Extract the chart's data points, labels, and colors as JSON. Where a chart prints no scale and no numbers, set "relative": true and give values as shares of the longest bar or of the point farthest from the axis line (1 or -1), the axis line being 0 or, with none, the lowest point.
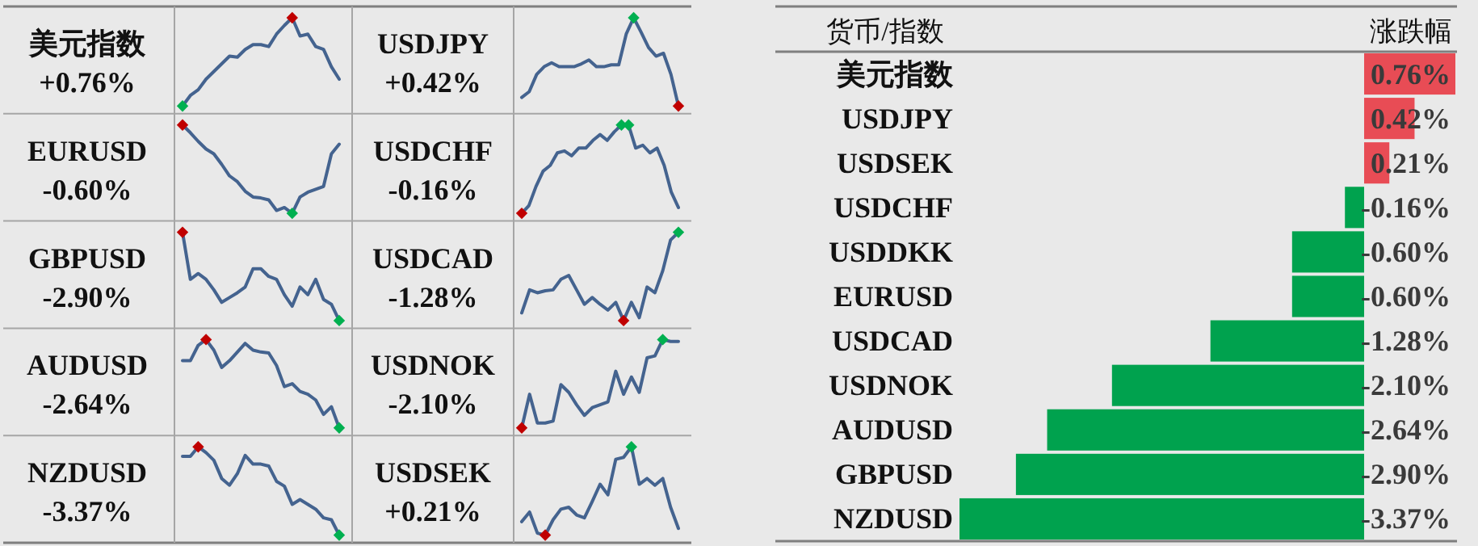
{
  "chart_data": [
    {
      "type": "line",
      "title": "美元指数",
      "subtitle": "+0.76%",
      "relative": true,
      "categories": [
        null,
        null,
        null,
        null,
        null,
        null,
        null,
        null,
        null,
        null,
        null,
        null,
        null,
        null,
        null,
        null,
        null,
        null,
        null,
        null,
        null
      ],
      "series": [
        {
          "color": "#44638f",
          "values": [
            0.08,
            0.19,
            0.25,
            0.36,
            0.44,
            0.52,
            0.6,
            0.59,
            0.67,
            0.72,
            0.72,
            0.7,
            0.83,
            0.92,
            1,
            0.81,
            0.83,
            0.7,
            0.67,
            0.49,
            0.36
          ],
          "colors": [
            "#00b050",
            null,
            null,
            null,
            null,
            null,
            null,
            null,
            null,
            null,
            null,
            null,
            null,
            null,
            "#c00000",
            null,
            null,
            null,
            null,
            null,
            null
          ]
        }
      ]
    },
    {
      "type": "line",
      "title": "USDJPY",
      "subtitle": "+0.42%",
      "relative": true,
      "categories": [
        null,
        null,
        null,
        null,
        null,
        null,
        null,
        null,
        null,
        null,
        null,
        null,
        null,
        null,
        null,
        null,
        null,
        null,
        null,
        null,
        null,
        null
      ],
      "series": [
        {
          "color": "#44638f",
          "values": [
            0.17,
            0.23,
            0.41,
            0.49,
            0.53,
            0.49,
            0.49,
            0.49,
            0.52,
            0.56,
            0.49,
            0.49,
            0.51,
            0.51,
            0.83,
            1,
            0.85,
            0.69,
            0.6,
            0.63,
            0.41,
            0.08
          ],
          "colors": [
            null,
            null,
            null,
            null,
            null,
            null,
            null,
            null,
            null,
            null,
            null,
            null,
            null,
            null,
            null,
            "#00b050",
            null,
            null,
            null,
            null,
            null,
            "#c00000"
          ]
        }
      ]
    },
    {
      "type": "line",
      "title": "EURUSD",
      "subtitle": "-0.60%",
      "relative": true,
      "categories": [
        null,
        null,
        null,
        null,
        null,
        null,
        null,
        null,
        null,
        null,
        null,
        null,
        null,
        null,
        null,
        null,
        null,
        null,
        null,
        null,
        null
      ],
      "series": [
        {
          "color": "#44638f",
          "values": [
            1,
            0.92,
            0.83,
            0.75,
            0.7,
            0.59,
            0.47,
            0.41,
            0.31,
            0.25,
            0.24,
            0.22,
            0.11,
            0.14,
            0.08,
            0.25,
            0.3,
            0.33,
            0.36,
            0.7,
            0.8
          ],
          "colors": [
            "#c00000",
            null,
            null,
            null,
            null,
            null,
            null,
            null,
            null,
            null,
            null,
            null,
            null,
            null,
            "#00b050",
            null,
            null,
            null,
            null,
            null,
            null
          ]
        }
      ]
    },
    {
      "type": "line",
      "title": "USDCHF",
      "subtitle": "-0.16%",
      "relative": true,
      "categories": [
        null,
        null,
        null,
        null,
        null,
        null,
        null,
        null,
        null,
        null,
        null,
        null,
        null,
        null,
        null,
        null,
        null,
        null,
        null,
        null,
        null,
        null,
        null
      ],
      "series": [
        {
          "color": "#44638f",
          "values": [
            0.08,
            0.16,
            0.36,
            0.52,
            0.58,
            0.71,
            0.73,
            0.68,
            0.76,
            0.76,
            0.84,
            0.9,
            0.84,
            0.93,
            1,
            1,
            0.76,
            0.79,
            0.71,
            0.76,
            0.58,
            0.3,
            0.14
          ],
          "colors": [
            "#c00000",
            null,
            null,
            null,
            null,
            null,
            null,
            null,
            null,
            null,
            null,
            null,
            null,
            null,
            "#00b050",
            "#00b050",
            null,
            null,
            null,
            null,
            null,
            null,
            null
          ]
        }
      ]
    },
    {
      "type": "line",
      "title": "GBPUSD",
      "subtitle": "-2.90%",
      "relative": true,
      "categories": [
        null,
        null,
        null,
        null,
        null,
        null,
        null,
        null,
        null,
        null,
        null,
        null,
        null,
        null,
        null,
        null,
        null,
        null,
        null,
        null,
        null
      ],
      "series": [
        {
          "color": "#44638f",
          "values": [
            1,
            0.51,
            0.57,
            0.51,
            0.4,
            0.27,
            0.32,
            0.37,
            0.43,
            0.62,
            0.62,
            0.54,
            0.51,
            0.35,
            0.23,
            0.43,
            0.35,
            0.51,
            0.3,
            0.25,
            0.08
          ],
          "colors": [
            "#c00000",
            null,
            null,
            null,
            null,
            null,
            null,
            null,
            null,
            null,
            null,
            null,
            null,
            null,
            null,
            null,
            null,
            null,
            null,
            null,
            "#00b050"
          ]
        }
      ]
    },
    {
      "type": "line",
      "title": "USDCAD",
      "subtitle": "-1.28%",
      "relative": true,
      "categories": [
        null,
        null,
        null,
        null,
        null,
        null,
        null,
        null,
        null,
        null,
        null,
        null,
        null,
        null,
        null,
        null,
        null,
        null,
        null,
        null,
        null
      ],
      "series": [
        {
          "color": "#44638f",
          "values": [
            0.16,
            0.4,
            0.37,
            0.39,
            0.4,
            0.51,
            0.55,
            0.4,
            0.25,
            0.32,
            0.25,
            0.19,
            0.27,
            0.08,
            0.27,
            0.11,
            0.43,
            0.37,
            0.6,
            0.92,
            1
          ],
          "colors": [
            null,
            null,
            null,
            null,
            null,
            null,
            null,
            null,
            null,
            null,
            null,
            null,
            null,
            "#c00000",
            null,
            null,
            null,
            null,
            null,
            null,
            "#00b050"
          ]
        }
      ]
    },
    {
      "type": "line",
      "title": "AUDUSD",
      "subtitle": "-2.64%",
      "relative": true,
      "categories": [
        null,
        null,
        null,
        null,
        null,
        null,
        null,
        null,
        null,
        null,
        null,
        null,
        null,
        null,
        null,
        null,
        null,
        null,
        null,
        null,
        null
      ],
      "series": [
        {
          "color": "#44638f",
          "values": [
            0.78,
            0.78,
            0.94,
            1,
            0.89,
            0.71,
            0.78,
            0.87,
            0.96,
            0.89,
            0.87,
            0.86,
            0.73,
            0.51,
            0.54,
            0.46,
            0.43,
            0.37,
            0.22,
            0.3,
            0.08
          ],
          "colors": [
            null,
            null,
            null,
            "#c00000",
            null,
            null,
            null,
            null,
            null,
            null,
            null,
            null,
            null,
            null,
            null,
            null,
            null,
            null,
            null,
            null,
            "#00b050"
          ]
        }
      ]
    },
    {
      "type": "line",
      "title": "USDNOK",
      "subtitle": "-2.10%",
      "relative": true,
      "categories": [
        null,
        null,
        null,
        null,
        null,
        null,
        null,
        null,
        null,
        null,
        null,
        null,
        null,
        null,
        null,
        null,
        null,
        null,
        null,
        null,
        null
      ],
      "series": [
        {
          "color": "#44638f",
          "values": [
            0.08,
            0.43,
            0.13,
            0.13,
            0.15,
            0.53,
            0.45,
            0.32,
            0.21,
            0.29,
            0.32,
            0.35,
            0.67,
            0.43,
            0.61,
            0.45,
            0.81,
            0.83,
            1,
            0.98,
            0.98
          ],
          "colors": [
            "#c00000",
            null,
            null,
            null,
            null,
            null,
            null,
            null,
            null,
            null,
            null,
            null,
            null,
            null,
            null,
            null,
            null,
            null,
            "#00b050",
            null,
            null
          ]
        }
      ]
    },
    {
      "type": "line",
      "title": "NZDUSD",
      "subtitle": "-3.37%",
      "relative": true,
      "categories": [
        null,
        null,
        null,
        null,
        null,
        null,
        null,
        null,
        null,
        null,
        null,
        null,
        null,
        null,
        null,
        null,
        null,
        null,
        null,
        null,
        null
      ],
      "series": [
        {
          "color": "#44638f",
          "values": [
            0.9,
            0.9,
            1,
            0.94,
            0.86,
            0.67,
            0.6,
            0.72,
            0.91,
            0.82,
            0.82,
            0.8,
            0.64,
            0.59,
            0.4,
            0.45,
            0.4,
            0.35,
            0.26,
            0.24,
            0.08
          ],
          "colors": [
            null,
            null,
            "#c00000",
            null,
            null,
            null,
            null,
            null,
            null,
            null,
            null,
            null,
            null,
            null,
            null,
            null,
            null,
            null,
            null,
            null,
            "#00b050"
          ]
        }
      ]
    },
    {
      "type": "line",
      "title": "USDSEK",
      "subtitle": "+0.21%",
      "relative": true,
      "categories": [
        null,
        null,
        null,
        null,
        null,
        null,
        null,
        null,
        null,
        null,
        null,
        null,
        null,
        null,
        null,
        null,
        null,
        null,
        null,
        null,
        null
      ],
      "series": [
        {
          "color": "#44638f",
          "values": [
            0.22,
            0.32,
            0.1,
            0.08,
            0.24,
            0.35,
            0.37,
            0.29,
            0.26,
            0.43,
            0.61,
            0.5,
            0.87,
            0.89,
            1,
            0.61,
            0.67,
            0.6,
            0.67,
            0.37,
            0.15
          ],
          "colors": [
            null,
            null,
            null,
            "#c00000",
            null,
            null,
            null,
            null,
            null,
            null,
            null,
            null,
            null,
            null,
            "#00b050",
            null,
            null,
            null,
            null,
            null,
            null
          ]
        }
      ]
    },
    {
      "type": "bar",
      "orientation": "horizontal",
      "ylabel": "货币/指数",
      "xlabel": "涨跌幅",
      "categories": [
        "美元指数",
        "USDJPY",
        "USDSEK",
        "USDCHF",
        "USDDKK",
        "EURUSD",
        "USDCAD",
        "USDNOK",
        "AUDUSD",
        "GBPUSD",
        "NZDUSD"
      ],
      "values": [
        0.76,
        0.42,
        0.21,
        -0.16,
        -0.6,
        -0.6,
        -1.28,
        -2.1,
        -2.64,
        -2.9,
        -3.37
      ],
      "colors": [
        "#e84c55",
        "#e84c55",
        "#e84c55",
        "#00a24e",
        "#00a24e",
        "#00a24e",
        "#00a24e",
        "#00a24e",
        "#00a24e",
        "#00a24e",
        "#00a24e"
      ],
      "value_labels": [
        "0.76%",
        "0.42%",
        "0.21%",
        "-0.16%",
        "-0.60%",
        "-0.60%",
        "-1.28%",
        "-2.10%",
        "-2.64%",
        "-2.90%",
        "-3.37%"
      ]
    }
  ]
}
